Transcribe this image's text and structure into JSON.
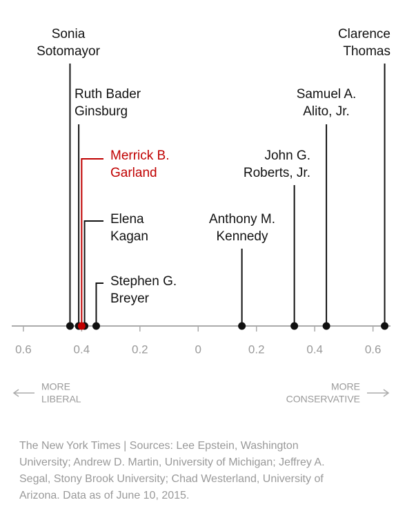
{
  "chart_data": {
    "type": "dot",
    "categories": [
      [
        "Sonia",
        "Sotomayor"
      ],
      [
        "Ruth Bader",
        "Ginsburg"
      ],
      [
        "Merrick B.",
        "Garland"
      ],
      [
        "Elena",
        "Kagan"
      ],
      [
        "Stephen G.",
        "Breyer"
      ],
      [
        "Anthony M.",
        "Kennedy"
      ],
      [
        "John G.",
        "Roberts, Jr."
      ],
      [
        "Samuel A.",
        "Alito, Jr."
      ],
      [
        "Clarence",
        "Thomas"
      ]
    ],
    "values": [
      -0.44,
      -0.41,
      -0.4,
      -0.39,
      -0.35,
      0.15,
      0.33,
      0.44,
      0.64
    ],
    "colors": [
      "#111111",
      "#111111",
      "#c00000",
      "#111111",
      "#111111",
      "#111111",
      "#111111",
      "#111111",
      "#111111"
    ],
    "xlim": [
      -0.64,
      0.66
    ],
    "xticks": [
      {
        "value": -0.6,
        "label": "0.6"
      },
      {
        "value": -0.4,
        "label": "0.4"
      },
      {
        "value": -0.2,
        "label": "0.2"
      },
      0,
      0.2,
      0.4,
      0.6
    ],
    "annotations": [
      [
        "MORE",
        "LIBERAL"
      ],
      [
        "MORE",
        "CONSERVATIVE"
      ]
    ],
    "source": [
      "The New York Times | Sources: Lee Epstein, Washington",
      "University; Andrew D. Martin, University of Michigan; Jeffrey A.",
      "Segal, Stony Brook University; Chad Westerland, University of",
      "Arizona. Data as of June 10, 2015."
    ]
  }
}
